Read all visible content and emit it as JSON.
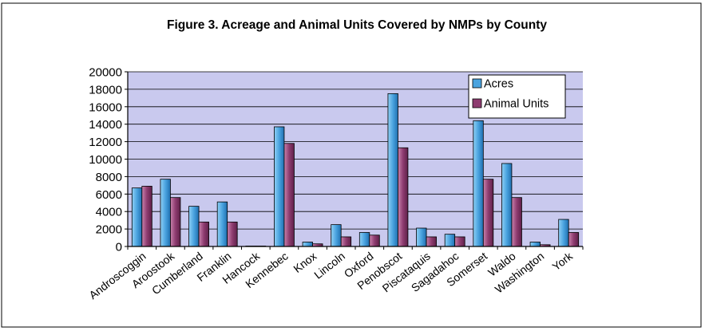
{
  "chart_data": {
    "type": "bar",
    "title": "Figure 3. Acreage and Animal Units Covered by NMPs by County",
    "xlabel": "",
    "ylabel": "",
    "ylim": [
      0,
      20000
    ],
    "yticks": [
      "20000",
      "18000",
      "16000",
      "14000",
      "12000",
      "10000",
      "8000",
      "6000",
      "4000",
      "2000",
      "0"
    ],
    "categories": [
      "Androscoggin",
      "Aroostook",
      "Cumberland",
      "Franklin",
      "Hancock",
      "Kennebec",
      "Knox",
      "Lincoln",
      "Oxford",
      "Penobscot",
      "Piscataquis",
      "Sagadahoc",
      "Somerset",
      "Waldo",
      "Washington",
      "York"
    ],
    "series": [
      {
        "name": "Acres",
        "color": "#4aa3df",
        "values": [
          6700,
          7700,
          4600,
          5100,
          50,
          13700,
          500,
          2500,
          1600,
          17500,
          2100,
          1400,
          14400,
          9500,
          500,
          3100
        ]
      },
      {
        "name": "Animal Units",
        "color": "#8e3c70",
        "values": [
          6900,
          5600,
          2800,
          2800,
          50,
          11800,
          300,
          1100,
          1300,
          11300,
          1100,
          1100,
          7700,
          5600,
          200,
          1600
        ]
      }
    ],
    "grid": true,
    "legend": "top-right",
    "plot_background": "#c9c9ee"
  }
}
